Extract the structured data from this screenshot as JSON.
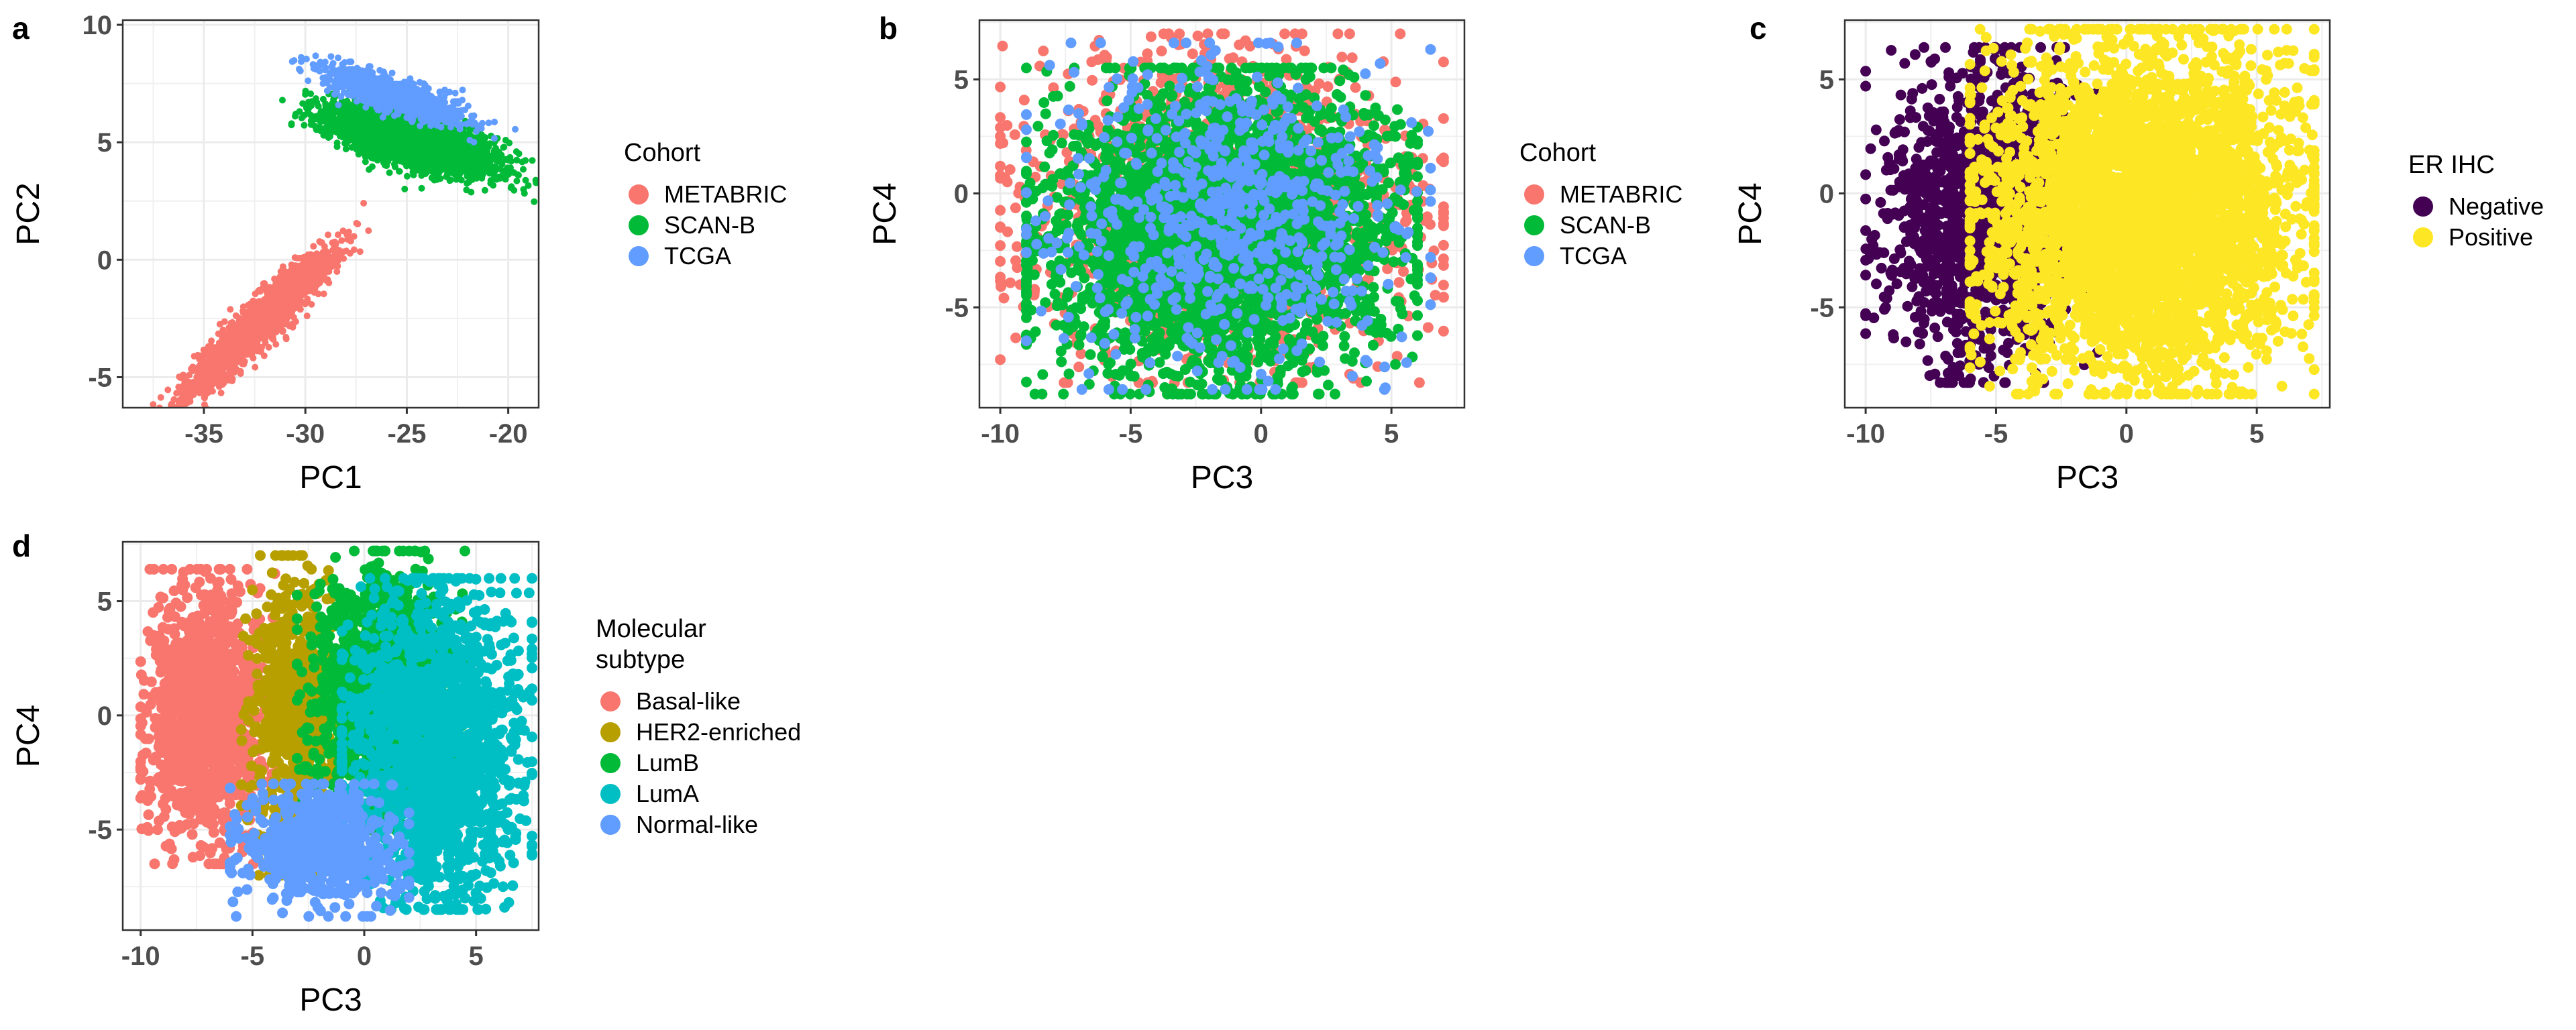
{
  "chart_data": [
    {
      "panel": "a",
      "type": "scatter",
      "xlabel": "PC1",
      "ylabel": "PC2",
      "xlim": [
        -39,
        -18.5
      ],
      "ylim": [
        -6.3,
        10.2
      ],
      "xticks": [
        -35,
        -30,
        -25,
        -20
      ],
      "yticks": [
        -5,
        0,
        5,
        10
      ],
      "grid": true,
      "legend": {
        "title": "Cohort",
        "placement": "right"
      },
      "series": [
        {
          "name": "METABRIC",
          "color": "#F8766D",
          "n": 2000,
          "cloud": {
            "kind": "ellipse",
            "center": [
              -32.3,
              -2.7
            ],
            "semi_axes": [
              4.2,
              0.75
            ],
            "angle_deg": 40
          }
        },
        {
          "name": "SCAN-B",
          "color": "#00BA38",
          "n": 2600,
          "cloud": {
            "kind": "ellipse",
            "center": [
              -24.7,
              5.0
            ],
            "semi_axes": [
              3.9,
              0.95
            ],
            "angle_deg": -14
          }
        },
        {
          "name": "TCGA",
          "color": "#619CFF",
          "n": 1000,
          "cloud": {
            "kind": "ellipse",
            "center": [
              -25.6,
              7.0
            ],
            "semi_axes": [
              3.2,
              0.65
            ],
            "angle_deg": -16
          }
        }
      ]
    },
    {
      "panel": "b",
      "type": "scatter",
      "xlabel": "PC3",
      "ylabel": "PC4",
      "xlim": [
        -10.8,
        7.8
      ],
      "ylim": [
        -9.4,
        7.6
      ],
      "xticks": [
        -10,
        -5,
        0,
        5
      ],
      "yticks": [
        -5,
        0,
        5
      ],
      "grid": true,
      "legend": {
        "title": "Cohort",
        "placement": "right"
      },
      "series": [
        {
          "name": "METABRIC",
          "color": "#F8766D",
          "n": 1600,
          "cloud": {
            "kind": "box",
            "x": [
              -10,
              7
            ],
            "y": [
              -8.3,
              7
            ]
          }
        },
        {
          "name": "SCAN-B",
          "color": "#00BA38",
          "n": 3600,
          "cloud": {
            "kind": "box",
            "x": [
              -9,
              6
            ],
            "y": [
              -8.8,
              5.5
            ]
          }
        },
        {
          "name": "TCGA",
          "color": "#619CFF",
          "n": 700,
          "cloud": {
            "kind": "box",
            "x": [
              -9,
              6.5
            ],
            "y": [
              -8.6,
              6.6
            ]
          }
        }
      ]
    },
    {
      "panel": "c",
      "type": "scatter",
      "xlabel": "PC3",
      "ylabel": "PC4",
      "xlim": [
        -10.8,
        7.8
      ],
      "ylim": [
        -9.4,
        7.6
      ],
      "xticks": [
        -10,
        -5,
        0,
        5
      ],
      "yticks": [
        -5,
        0,
        5
      ],
      "grid": true,
      "legend": {
        "title": "ER IHC",
        "placement": "right"
      },
      "series": [
        {
          "name": "Negative",
          "color": "#440154",
          "n": 1500,
          "cloud": {
            "kind": "box",
            "x": [
              -10,
              -1
            ],
            "y": [
              -8.3,
              6.4
            ]
          }
        },
        {
          "name": "Positive",
          "color": "#FDE725",
          "n": 4300,
          "cloud": {
            "kind": "box",
            "x": [
              -6,
              7.2
            ],
            "y": [
              -8.8,
              7.2
            ]
          }
        }
      ]
    },
    {
      "panel": "d",
      "type": "scatter",
      "xlabel": "PC3",
      "ylabel": "PC4",
      "xlim": [
        -10.8,
        7.8
      ],
      "ylim": [
        -9.4,
        7.6
      ],
      "xticks": [
        -10,
        -5,
        0,
        5
      ],
      "yticks": [
        -5,
        0,
        5
      ],
      "grid": true,
      "legend": {
        "title": "Molecular\nsubtype",
        "placement": "right"
      },
      "series": [
        {
          "name": "Basal-like",
          "color": "#F8766D",
          "n": 1300,
          "cloud": {
            "kind": "box",
            "x": [
              -10,
              -4
            ],
            "y": [
              -6.5,
              6.4
            ]
          }
        },
        {
          "name": "HER2-enriched",
          "color": "#B79F00",
          "n": 700,
          "cloud": {
            "kind": "box",
            "x": [
              -5.5,
              -1
            ],
            "y": [
              -7,
              7
            ]
          }
        },
        {
          "name": "LumB",
          "color": "#00BA38",
          "n": 1300,
          "cloud": {
            "kind": "box",
            "x": [
              -3,
              4.5
            ],
            "y": [
              -5,
              7.2
            ]
          }
        },
        {
          "name": "LumA",
          "color": "#00BFC4",
          "n": 1900,
          "cloud": {
            "kind": "box",
            "x": [
              -1,
              7.5
            ],
            "y": [
              -8.5,
              6
            ]
          }
        },
        {
          "name": "Normal-like",
          "color": "#619CFF",
          "n": 700,
          "cloud": {
            "kind": "box",
            "x": [
              -6,
              2
            ],
            "y": [
              -8.8,
              -3
            ]
          }
        }
      ]
    }
  ]
}
